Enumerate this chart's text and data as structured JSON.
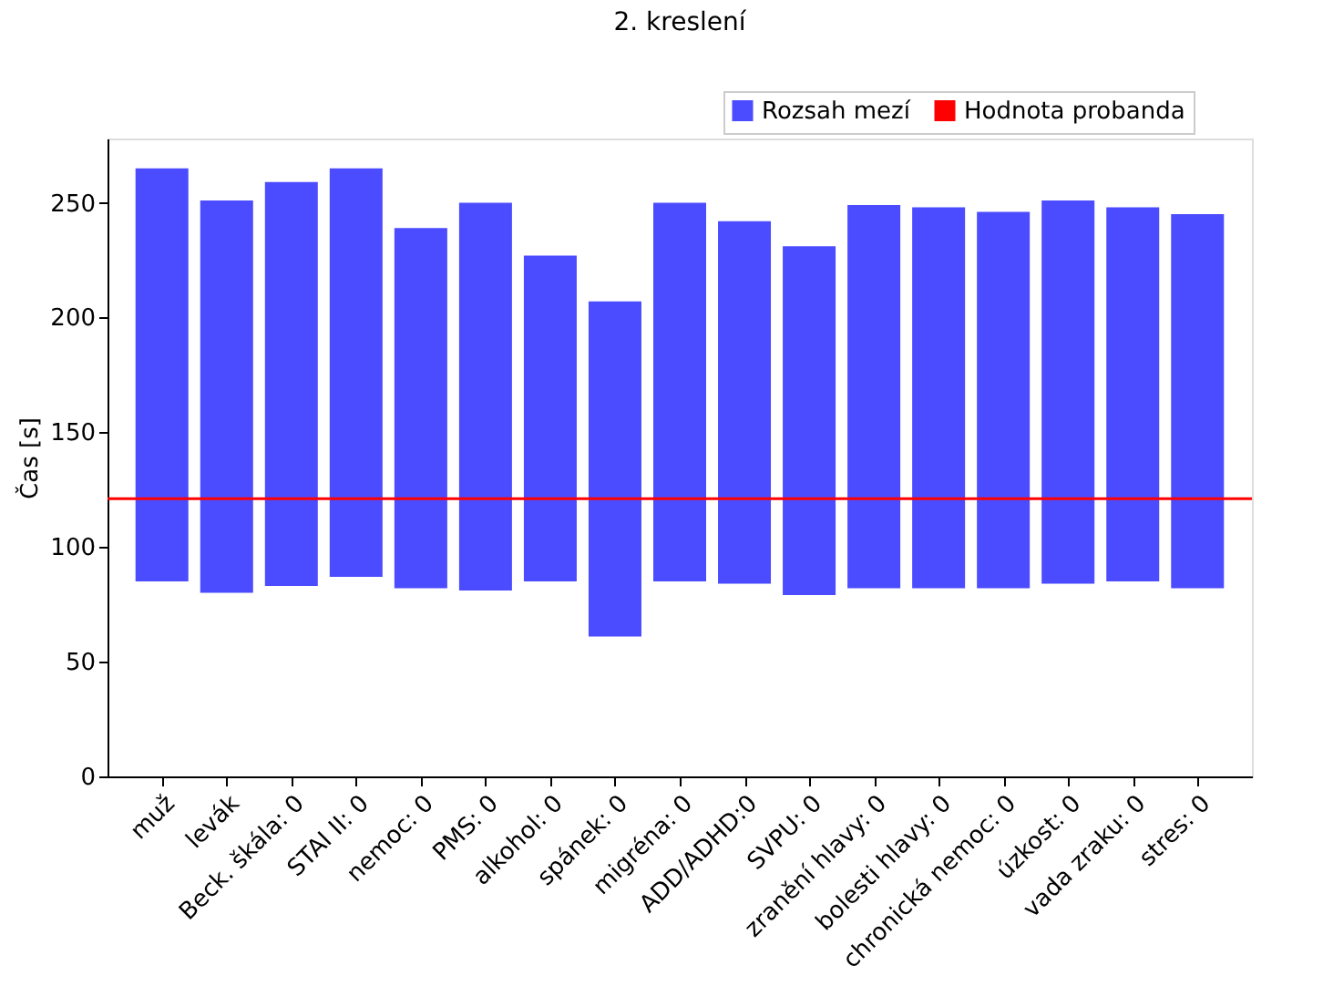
{
  "chart_data": {
    "type": "bar",
    "title": "2. kreslení",
    "ylabel": "Čas [s]",
    "categories": [
      "muž",
      "levák",
      "Beck. škála: 0",
      "STAI II: 0",
      "nemoc: 0",
      "PMS: 0",
      "alkohol: 0",
      "spánek: 0",
      "migréna: 0",
      "ADD/ADHD:0",
      "SVPU: 0",
      "zranění hlavy: 0",
      "bolesti hlavy: 0",
      "chronická nemoc: 0",
      "úzkost: 0",
      "vada zraku: 0",
      "stres: 0"
    ],
    "series": [
      {
        "name": "Rozsah mezí",
        "color": "#4b4bff",
        "base": [
          85,
          80,
          83,
          87,
          82,
          81,
          85,
          61,
          85,
          84,
          79,
          82,
          82,
          82,
          84,
          85,
          82
        ],
        "values": [
          180,
          171,
          176,
          178,
          157,
          169,
          142,
          146,
          165,
          158,
          152,
          167,
          166,
          164,
          167,
          163,
          163
        ]
      }
    ],
    "ref_lines": [
      {
        "axis": "y",
        "value": 121,
        "label": "Hodnota probanda",
        "color": "#ff0000"
      }
    ],
    "ylim": [
      0,
      278
    ],
    "yticks": [
      0,
      50,
      100,
      150,
      200,
      250
    ],
    "grid": false,
    "legend": "top right"
  }
}
